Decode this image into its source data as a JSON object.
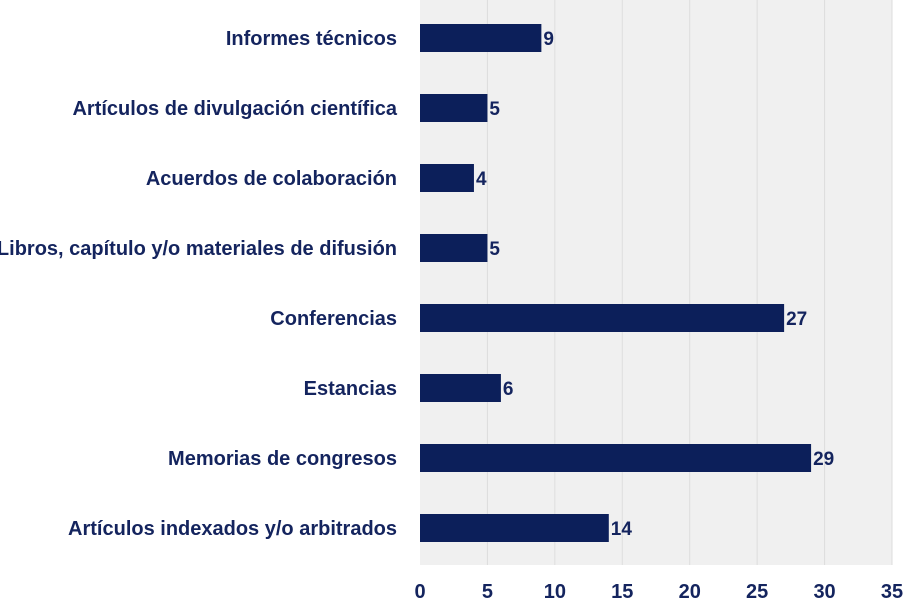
{
  "chart_data": {
    "type": "bar",
    "orientation": "horizontal",
    "categories": [
      "Informes técnicos",
      "Artículos de divulgación científica",
      "Acuerdos de colaboración",
      "Libros, capítulo y/o materiales de difusión",
      "Conferencias",
      "Estancias",
      "Memorias de congresos",
      "Artículos indexados y/o arbitrados"
    ],
    "values": [
      9,
      5,
      4,
      5,
      27,
      6,
      29,
      14
    ],
    "xlim": [
      0,
      35
    ],
    "xticks": [
      "0",
      "5",
      "10",
      "15",
      "20",
      "25",
      "30",
      "35"
    ],
    "grid": "vertical",
    "data_labels": true,
    "title": "",
    "xlabel": "",
    "ylabel": "",
    "colors": {
      "bar": "#0c1f5a",
      "text": "#14245e",
      "plot_background": "#f0f0f0",
      "gridline": "#dddddd"
    }
  }
}
